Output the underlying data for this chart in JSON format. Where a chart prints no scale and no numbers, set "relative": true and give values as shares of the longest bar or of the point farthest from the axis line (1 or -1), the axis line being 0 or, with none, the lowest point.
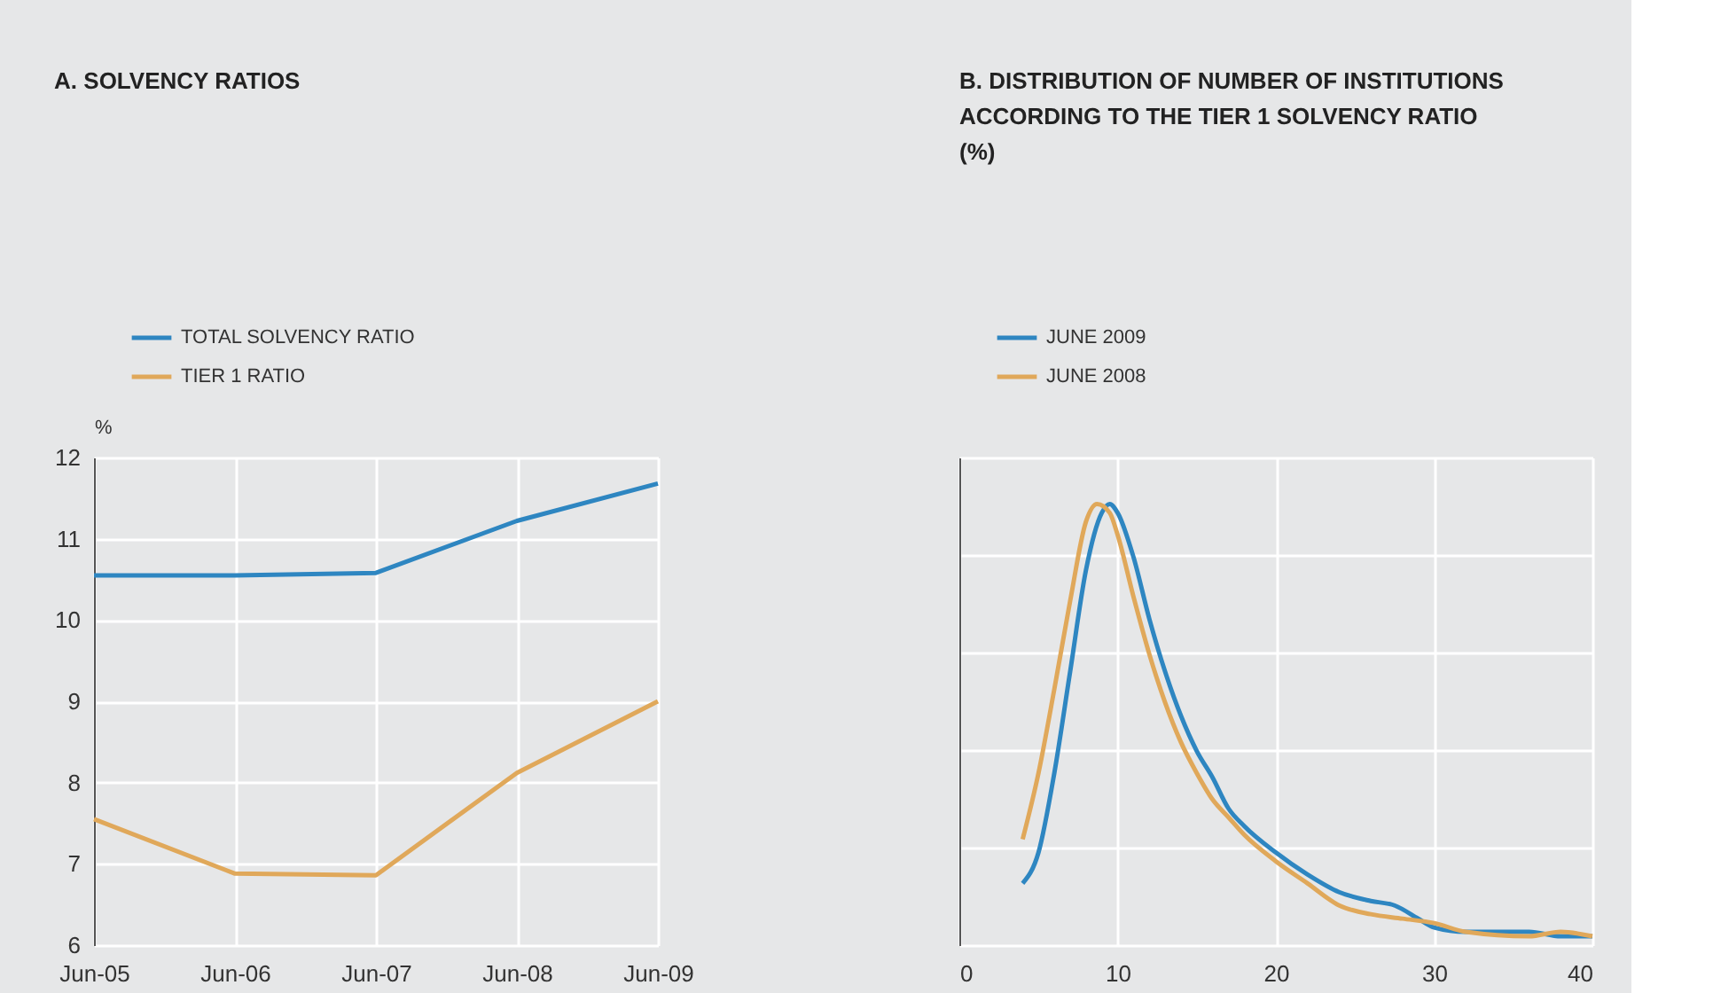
{
  "chart_data": [
    {
      "type": "line",
      "title": "A. SOLVENCY RATIOS",
      "ylabel": "%",
      "categories": [
        "Jun-05",
        "Jun-06",
        "Jun-07",
        "Jun-08",
        "Jun-09"
      ],
      "ylim": [
        6,
        12
      ],
      "yticks": [
        6,
        7,
        8,
        9,
        10,
        11,
        12
      ],
      "grid": true,
      "legend": "top left",
      "line_style": "solid",
      "series": [
        {
          "name": "TOTAL SOLVENCY RATIO",
          "color": "#2e86c1",
          "values": [
            10.55,
            10.55,
            10.58,
            11.22,
            11.68
          ]
        },
        {
          "name": "TIER 1 RATIO",
          "color": "#e0a85a",
          "values": [
            7.55,
            6.88,
            6.86,
            8.12,
            9.0
          ]
        }
      ]
    },
    {
      "type": "line",
      "title": [
        "B. DISTRIBUTION OF NUMBER OF INSTITUTIONS",
        "ACCORDING TO THE TIER 1 SOLVENCY RATIO",
        "(%)"
      ],
      "relative": true,
      "xlim": [
        0,
        40
      ],
      "xticks": [
        0,
        10,
        20,
        30,
        40
      ],
      "grid": true,
      "legend": "top left",
      "line_style": "solid",
      "series": [
        {
          "name": "JUNE 2009",
          "color": "#2e86c1",
          "x": [
            4,
            5,
            6,
            7,
            8,
            9,
            9.5,
            10,
            11,
            12,
            13,
            14,
            15,
            16,
            17,
            18,
            20,
            22,
            24,
            26,
            27.5,
            29,
            30,
            32,
            36,
            38,
            40
          ],
          "values": [
            0.14,
            0.21,
            0.39,
            0.62,
            0.85,
            0.98,
            1.0,
            0.98,
            0.88,
            0.74,
            0.62,
            0.52,
            0.44,
            0.38,
            0.31,
            0.27,
            0.21,
            0.16,
            0.12,
            0.1,
            0.09,
            0.06,
            0.04,
            0.03,
            0.03,
            0.02,
            0.02
          ]
        },
        {
          "name": "JUNE 2008",
          "color": "#e0a85a",
          "x": [
            4,
            5,
            6,
            7,
            8,
            8.7,
            9.5,
            10,
            11,
            12,
            13,
            14,
            15,
            16,
            17,
            18,
            20,
            22,
            24,
            26,
            28,
            30,
            32,
            36,
            38,
            40
          ],
          "values": [
            0.24,
            0.39,
            0.58,
            0.78,
            0.96,
            1.0,
            0.98,
            0.93,
            0.79,
            0.66,
            0.55,
            0.46,
            0.39,
            0.33,
            0.29,
            0.25,
            0.19,
            0.14,
            0.09,
            0.07,
            0.06,
            0.05,
            0.03,
            0.02,
            0.03,
            0.02
          ]
        }
      ]
    }
  ]
}
